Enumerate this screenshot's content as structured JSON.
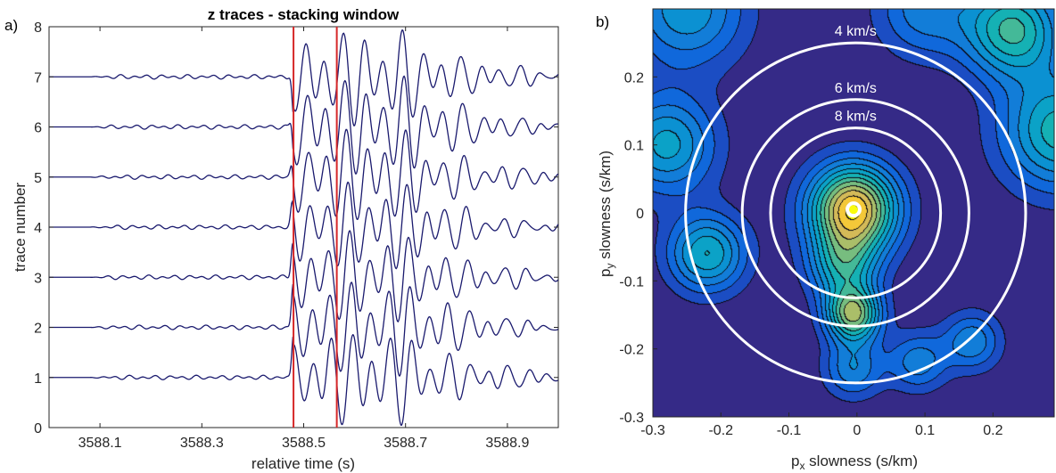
{
  "colors": {
    "trace": "#1a1a6e",
    "window_marker": "#d62728",
    "ring": "#ffffff",
    "contour_line": "#000000",
    "parula_low": "#3a3fa8",
    "parula_high": "#f9f920"
  },
  "chart_data": [
    {
      "panel_label": "a)",
      "type": "line",
      "title": "z traces - stacking window",
      "xlabel": "relative time (s)",
      "ylabel": "trace number",
      "xlim": [
        3588.0,
        3589.0
      ],
      "ylim": [
        0,
        8
      ],
      "xticks": [
        "3588.1",
        "3588.3",
        "3588.5",
        "3588.7",
        "3588.9"
      ],
      "yticks": [
        "0",
        "1",
        "2",
        "3",
        "4",
        "5",
        "6",
        "7",
        "8"
      ],
      "grid": false,
      "stacking_window": [
        3588.48,
        3588.565
      ],
      "series": [
        {
          "trace": 1,
          "baseline": 1,
          "onset": 3588.48,
          "peak_amplitude": 0.95
        },
        {
          "trace": 2,
          "baseline": 2,
          "onset": 3588.48,
          "peak_amplitude": 0.95
        },
        {
          "trace": 3,
          "baseline": 3,
          "onset": 3588.48,
          "peak_amplitude": 0.9
        },
        {
          "trace": 4,
          "baseline": 4,
          "onset": 3588.48,
          "peak_amplitude": 0.9
        },
        {
          "trace": 5,
          "baseline": 5,
          "onset": 3588.48,
          "peak_amplitude": 0.95
        },
        {
          "trace": 6,
          "baseline": 6,
          "onset": 3588.48,
          "peak_amplitude": 1.0
        },
        {
          "trace": 7,
          "baseline": 7,
          "onset": 3588.48,
          "peak_amplitude": 0.95
        }
      ]
    },
    {
      "panel_label": "b)",
      "type": "heatmap",
      "xlabel_main": "p",
      "xlabel_sub": "x",
      "xlabel_rest": " slowness (s/km)",
      "ylabel_main": "p",
      "ylabel_sub": "y",
      "ylabel_rest": " slowness (s/km)",
      "xlim": [
        -0.3,
        0.3
      ],
      "ylim": [
        -0.3,
        0.3
      ],
      "xticks": [
        "-0.3",
        "-0.2",
        "-0.1",
        "0",
        "0.1",
        "0.2"
      ],
      "yticks": [
        "-0.3",
        "-0.2",
        "-0.1",
        "0",
        "0.1",
        "0.2"
      ],
      "colormap": "parula",
      "contour_levels": 12,
      "maximum": {
        "px": -0.005,
        "py": 0.005
      },
      "peaks": [
        {
          "px": -0.005,
          "py": 0.005,
          "sigma": 0.045,
          "amplitude": 1.0
        },
        {
          "px": -0.005,
          "py": -0.15,
          "sigma": 0.028,
          "amplitude": 0.75
        },
        {
          "px": -0.02,
          "py": -0.08,
          "sigma": 0.035,
          "amplitude": 0.45
        },
        {
          "px": -0.005,
          "py": -0.23,
          "sigma": 0.03,
          "amplitude": 0.32
        },
        {
          "px": -0.22,
          "py": -0.06,
          "sigma": 0.04,
          "amplitude": 0.5
        },
        {
          "px": 0.23,
          "py": 0.27,
          "sigma": 0.05,
          "amplitude": 0.6
        },
        {
          "px": 0.3,
          "py": 0.12,
          "sigma": 0.06,
          "amplitude": 0.55
        },
        {
          "px": -0.28,
          "py": 0.1,
          "sigma": 0.05,
          "amplitude": 0.45
        },
        {
          "px": -0.25,
          "py": 0.3,
          "sigma": 0.06,
          "amplitude": 0.4
        },
        {
          "px": 0.09,
          "py": -0.22,
          "sigma": 0.03,
          "amplitude": 0.3
        },
        {
          "px": 0.17,
          "py": -0.19,
          "sigma": 0.03,
          "amplitude": 0.32
        },
        {
          "px": 0.1,
          "py": 0.3,
          "sigma": 0.05,
          "amplitude": 0.3
        }
      ],
      "rings": [
        {
          "label": "4 km/s",
          "velocity": 4
        },
        {
          "label": "6 km/s",
          "velocity": 6
        },
        {
          "label": "8 km/s",
          "velocity": 8
        }
      ]
    }
  ]
}
